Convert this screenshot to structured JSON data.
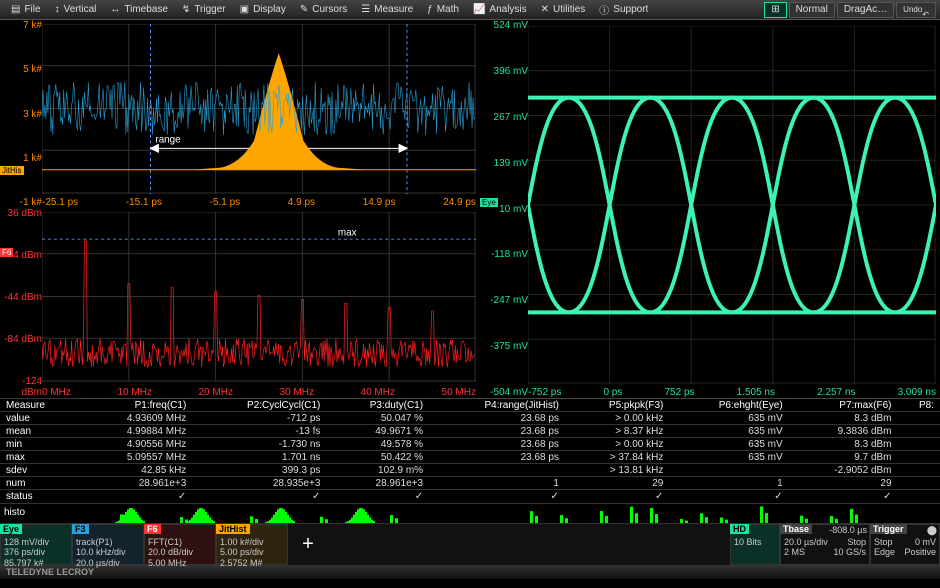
{
  "menu": [
    "File",
    "Vertical",
    "Timebase",
    "Trigger",
    "Display",
    "Cursors",
    "Measure",
    "Math",
    "Analysis",
    "Utilities",
    "Support"
  ],
  "menu_icons": [
    "file",
    "vertical",
    "timebase",
    "trigger",
    "display",
    "cursors",
    "measure",
    "math",
    "analysis",
    "utilities",
    "support"
  ],
  "right_buttons": {
    "normal": "Normal",
    "drag": "DragAc…",
    "undo": "Undo"
  },
  "chart1": {
    "ylabels": [
      "7 k#",
      "5 k#",
      "3 k#",
      "1 k#",
      "-1 k#"
    ],
    "ycolor": "#ff8800",
    "xlabels": [
      "-25.1 ps",
      "-15.1 ps",
      "-5.1 ps",
      "4.9 ps",
      "14.9 ps",
      "24.9 ps"
    ],
    "xcolor": "#ff8800",
    "range_label": "range",
    "signal_color": "#2a9fd6",
    "hist_color": "#ffa500",
    "cursor_color": "#6090ff",
    "tag": "JitHis"
  },
  "chart2": {
    "ylabels": [
      "36 dBm",
      "-4 dBm",
      "-44 dBm",
      "-84 dBm",
      "-124 dBm"
    ],
    "ycolor": "#ff3333",
    "xlabels": [
      "0 MHz",
      "10 MHz",
      "20 MHz",
      "30 MHz",
      "40 MHz",
      "50 MHz"
    ],
    "xcolor": "#ff3333",
    "max_label": "max",
    "signal_color": "#ff2020",
    "cursor_color": "#6090ff",
    "tag": "F6"
  },
  "eye": {
    "ylabels": [
      "524 mV",
      "396 mV",
      "267 mV",
      "139 mV",
      "10 mV",
      "-118 mV",
      "-247 mV",
      "-375 mV",
      "-504 mV"
    ],
    "ycolor": "#20e0a0",
    "xlabels": [
      "-752 ps",
      "0 ps",
      "752 ps",
      "1.505 ns",
      "2.257 ns",
      "3.009 ns"
    ],
    "xcolor": "#20e0a0",
    "trace_color": "#40ffc0",
    "tag": "Eye"
  },
  "measure": {
    "rowheads": [
      "Measure",
      "value",
      "mean",
      "min",
      "max",
      "sdev",
      "num",
      "status"
    ],
    "cols": [
      "P1:freq(C1)",
      "P2:CyclCycl(C1)",
      "P3:duty(C1)",
      "P4:range(JitHist)",
      "P5:pkpk(F3)",
      "P6:ehght(Eye)",
      "P7:max(F6)",
      "P8:"
    ],
    "rows": [
      [
        "4.93609 MHz",
        "-712 ps",
        "50.047 %",
        "23.68 ps",
        "> 0.00 kHz",
        "635 mV",
        "8.3 dBm",
        ""
      ],
      [
        "4.99884 MHz",
        "-13 fs",
        "49.9671 %",
        "23.68 ps",
        "> 8.37 kHz",
        "635 mV",
        "9.3836 dBm",
        ""
      ],
      [
        "4.90556 MHz",
        "-1.730 ns",
        "49.578 %",
        "23.68 ps",
        "> 0.00 kHz",
        "635 mV",
        "8.3 dBm",
        ""
      ],
      [
        "5.09557 MHz",
        "1.701 ns",
        "50.422 %",
        "23.68 ps",
        "> 37.84 kHz",
        "635 mV",
        "9.7 dBm",
        ""
      ],
      [
        "42.85 kHz",
        "399.3 ps",
        "102.9 m%",
        "",
        "> 13.81 kHz",
        "",
        "-2.9052 dBm",
        ""
      ],
      [
        "28.961e+3",
        "28.935e+3",
        "28.961e+3",
        "1",
        "29",
        "1",
        "29",
        ""
      ]
    ],
    "status": [
      "✓",
      "✓",
      "✓",
      "✓",
      "✓",
      "✓",
      "✓",
      ""
    ]
  },
  "histo_label": "histo",
  "channels": [
    {
      "tag": "Eye",
      "tagbg": "#20e0a0",
      "tagfg": "#000",
      "lines": [
        "128 mV/div",
        "376 ps/div",
        "85.797 k#"
      ],
      "bg": "#0a3028"
    },
    {
      "tag": "F3",
      "tagbg": "#2a9fd6",
      "tagfg": "#000",
      "lines": [
        "track(P1)",
        "10.0 kHz/div",
        "20.0 µs/div"
      ],
      "bg": "#12232e"
    },
    {
      "tag": "F6",
      "tagbg": "#ff3333",
      "tagfg": "#fff",
      "lines": [
        "FFT(C1)",
        "20.0 dB/div",
        "5.00 MHz"
      ],
      "bg": "#2e1010"
    },
    {
      "tag": "JitHist",
      "tagbg": "#ffa500",
      "tagfg": "#000",
      "lines": [
        "",
        "1.00 k#/div",
        "5.00 ps/div",
        "2.5752 M#"
      ],
      "bg": "#2e2410"
    }
  ],
  "cross": "+",
  "right_status": {
    "hd": {
      "label": "HD",
      "line": "10 Bits"
    },
    "tbase": {
      "label": "Tbase",
      "val": "-808.0 µs",
      "l1": "20.0 µs/div",
      "l2": "2 MS",
      "l3": "10 GS/s"
    },
    "trigger": {
      "label": "Trigger",
      "l1": "Stop",
      "l2": "Edge",
      "l3": "0 mV",
      "l4": "Positive"
    }
  },
  "footer": "TELEDYNE LECROY"
}
